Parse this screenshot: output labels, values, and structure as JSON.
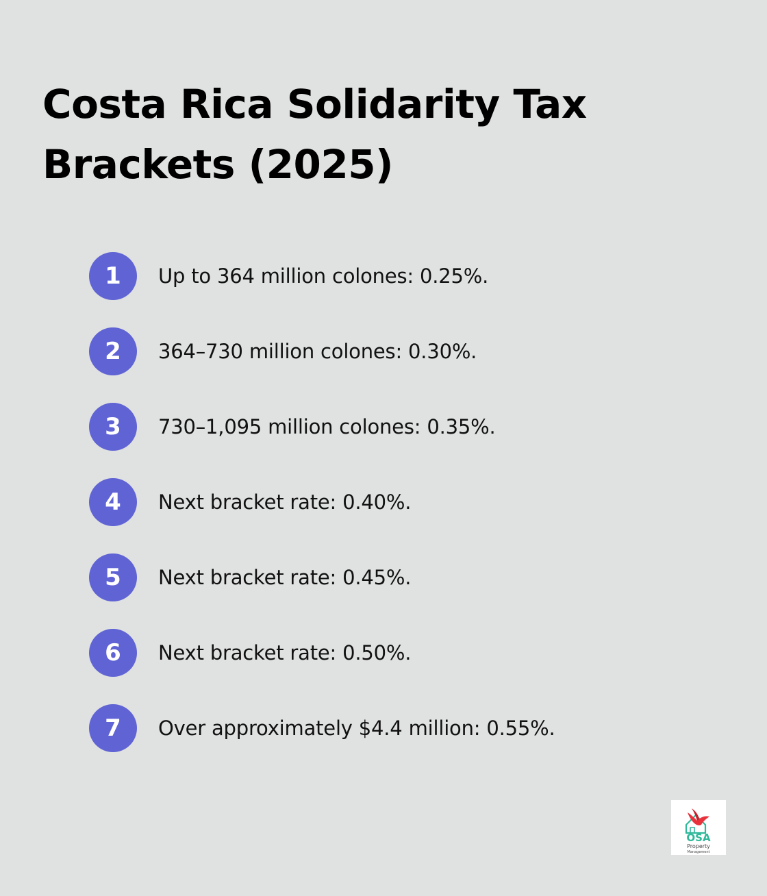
{
  "title_line1": "Costa Rica Solidarity Tax",
  "title_line2": "Brackets (2025)",
  "items": [
    {
      "number": "1",
      "text": "Up to 364 million colones: 0.25%."
    },
    {
      "number": "2",
      "text": "364–730 million colones: 0.30%."
    },
    {
      "number": "3",
      "text": "730–1,095 million colones: 0.35%."
    },
    {
      "number": "4",
      "text": "Next bracket rate: 0.40%."
    },
    {
      "number": "5",
      "text": "Next bracket rate: 0.45%."
    },
    {
      "number": "6",
      "text": "Next bracket rate: 0.50%."
    },
    {
      "number": "7",
      "text": "Over approximately $4.4 million: 0.55%."
    }
  ],
  "logo": {
    "name": "OSA",
    "line1": "Property",
    "line2": "Management",
    "icon": "house-bird-logo"
  },
  "colors": {
    "background": "#e0e1e1",
    "badge": "#5f63d4",
    "logo_green": "#2fb89a",
    "logo_red": "#e8323c"
  }
}
